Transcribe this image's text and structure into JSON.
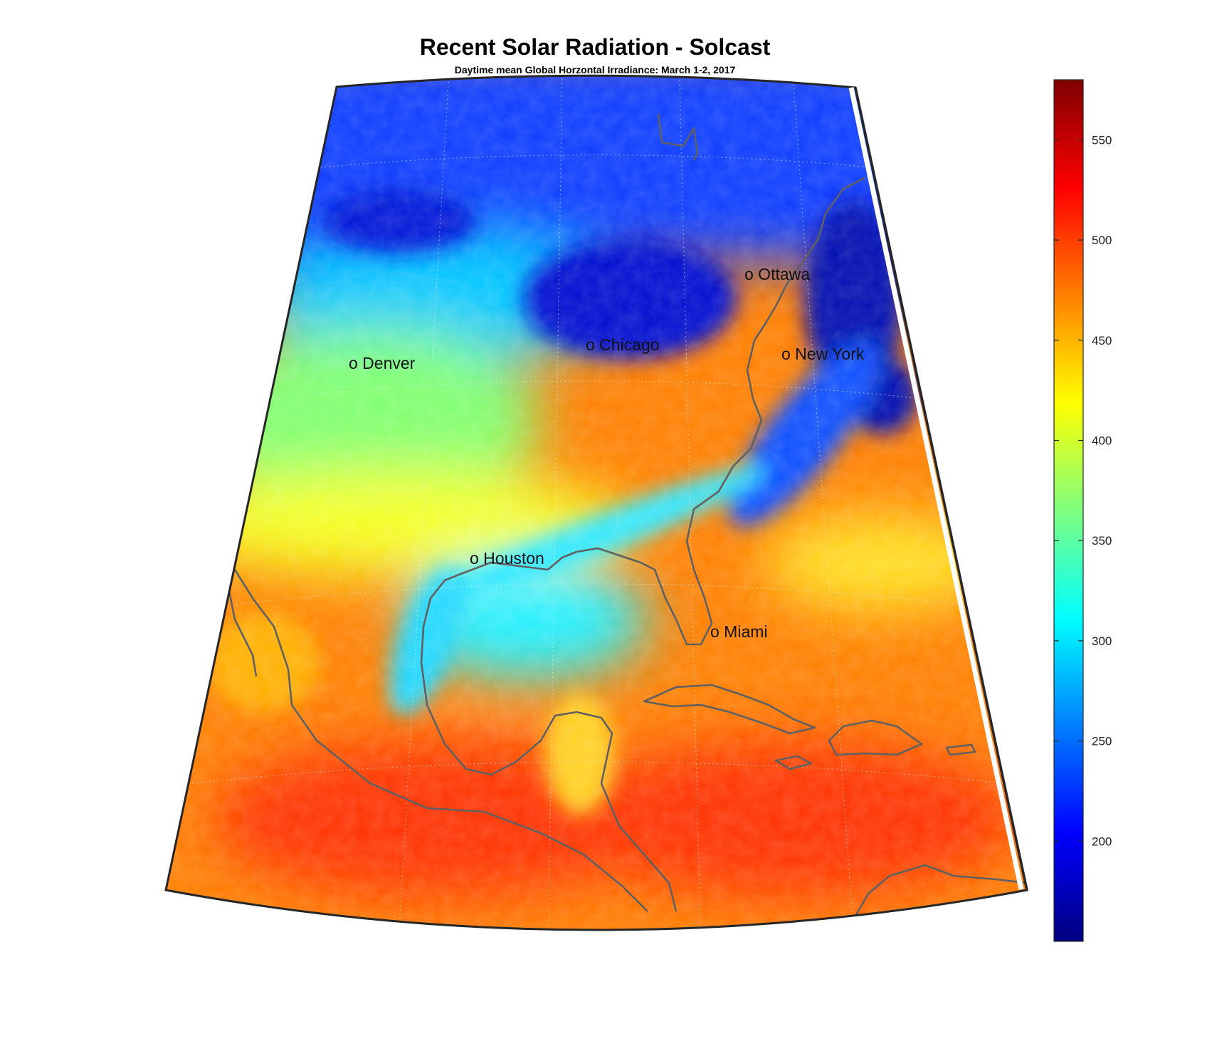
{
  "figure": {
    "title": "Recent Solar Radiation - Solcast",
    "subtitle": "Daytime mean Global Horzontal Irradiance: March 1-2, 2017"
  },
  "map": {
    "cities": [
      {
        "label": "o Ottawa"
      },
      {
        "label": "o Chicago"
      },
      {
        "label": "o Denver"
      },
      {
        "label": "o New York"
      },
      {
        "label": "o Houston"
      },
      {
        "label": "o Miami"
      }
    ]
  },
  "colorbar": {
    "min": 150,
    "max": 580,
    "ticks": [
      200,
      250,
      300,
      350,
      400,
      450,
      500,
      550
    ],
    "colormap": "jet",
    "colors": [
      "#00007f",
      "#0000ff",
      "#007fff",
      "#00ffff",
      "#7fff7f",
      "#ffff00",
      "#ff7f00",
      "#ff0000",
      "#7f0000"
    ]
  },
  "chart_data": {
    "type": "heatmap",
    "title": "Recent Solar Radiation - Solcast",
    "subtitle": "Daytime mean Global Horzontal Irradiance: March 1-2, 2017",
    "colorbar_range": [
      150,
      580
    ],
    "colorbar_ticks": [
      200,
      250,
      300,
      350,
      400,
      450,
      500,
      550
    ]
  }
}
